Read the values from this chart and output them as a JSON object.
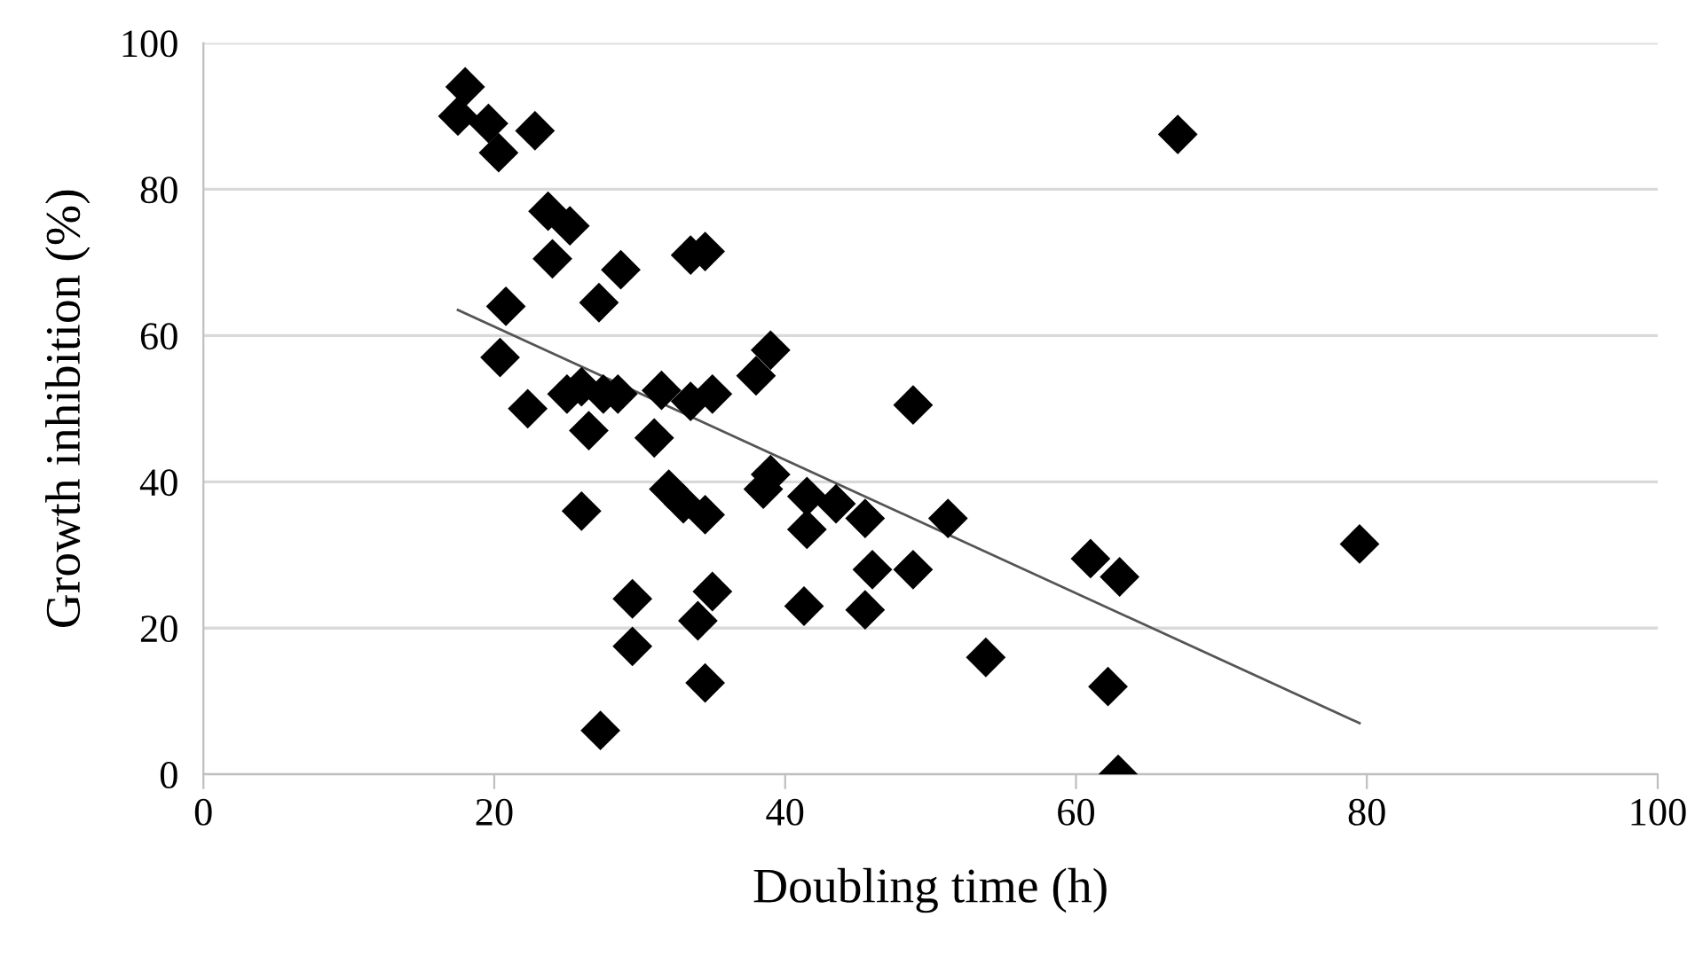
{
  "chart_data": {
    "type": "scatter",
    "xlabel": "Doubling time (h)",
    "ylabel": "Growth inhibition (%)",
    "xlim": [
      0,
      100
    ],
    "xticks": [
      0,
      20,
      40,
      60,
      80,
      100
    ],
    "ylim": [
      0,
      100
    ],
    "yticks": [
      0,
      20,
      40,
      60,
      80,
      100
    ],
    "grid": "y",
    "series": [
      {
        "marker": "diamond",
        "color": "#000000",
        "x": [
          18,
          17.5,
          19.6,
          20.3,
          22.8,
          23.7,
          25.2,
          24,
          20.8,
          20.4,
          22.3,
          25,
          26,
          26.5,
          27,
          27.5,
          28.5,
          27.2,
          28.7,
          26,
          29.5,
          29.5,
          27.3,
          31,
          31.5,
          33.5,
          35,
          32,
          33,
          34.5,
          33.5,
          34.5,
          38,
          39,
          38.5,
          39,
          34,
          35,
          34.5,
          41.5,
          41.5,
          43.5,
          45.5,
          46,
          45.5,
          41.3,
          48.8,
          48.8,
          51.2,
          53.8,
          61,
          63,
          62.2,
          62.9,
          67,
          79.5
        ],
        "values": [
          94,
          90,
          89,
          85,
          88,
          77,
          75,
          70.5,
          64,
          57,
          50,
          52,
          53,
          47,
          null,
          52,
          52,
          64.5,
          69,
          36,
          24,
          17.5,
          6,
          46,
          52.5,
          51,
          52,
          39,
          37,
          35.5,
          71,
          71.5,
          54.5,
          58,
          39,
          41,
          21,
          25,
          12.5,
          38,
          33.5,
          37,
          35,
          28,
          22.5,
          23,
          50.5,
          28,
          35,
          16,
          29.5,
          27,
          12,
          0,
          87.5,
          31.5
        ]
      },
      {
        "type": "line",
        "color": "#555555",
        "x": [
          17.5,
          79.5
        ],
        "values": [
          63.5,
          7
        ]
      }
    ]
  }
}
